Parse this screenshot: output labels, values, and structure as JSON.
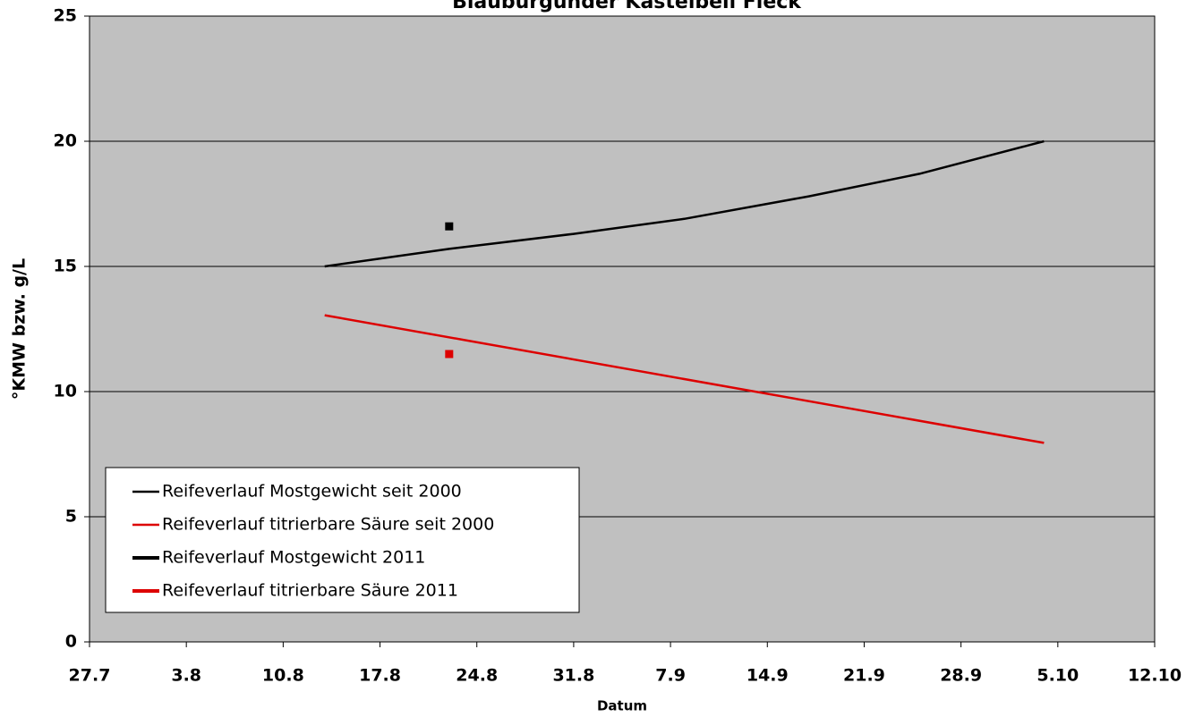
{
  "chart_data": {
    "type": "line",
    "title": "Blauburgunder Kastelbell Fleck",
    "xlabel": "Datum",
    "ylabel": "°KMW bzw. g/L",
    "xlim": [
      0,
      77
    ],
    "xticks": [
      {
        "value": 0,
        "label": "27.7"
      },
      {
        "value": 7,
        "label": "3.8"
      },
      {
        "value": 14,
        "label": "10.8"
      },
      {
        "value": 21,
        "label": "17.8"
      },
      {
        "value": 28,
        "label": "24.8"
      },
      {
        "value": 35,
        "label": "31.8"
      },
      {
        "value": 42,
        "label": "7.9"
      },
      {
        "value": 49,
        "label": "14.9"
      },
      {
        "value": 56,
        "label": "21.9"
      },
      {
        "value": 63,
        "label": "28.9"
      },
      {
        "value": 70,
        "label": "5.10"
      },
      {
        "value": 77,
        "label": "12.10"
      }
    ],
    "ylim": [
      0,
      25
    ],
    "yticks": [
      0,
      5,
      10,
      15,
      20,
      25
    ],
    "grid": true,
    "legend": "lower left",
    "series": [
      {
        "name": "Reifeverlauf Mostgewicht seit 2000",
        "color": "#000000",
        "style": "line",
        "x": [
          17,
          26,
          35,
          43,
          52,
          60,
          69
        ],
        "values": [
          15,
          15.7,
          16.3,
          16.9,
          17.8,
          18.7,
          20
        ]
      },
      {
        "name": "Reifeverlauf titrierbare Säure seit 2000",
        "color": "#dd0000",
        "style": "line",
        "x": [
          17,
          69
        ],
        "values": [
          13.05,
          7.95
        ]
      },
      {
        "name": "Reifeverlauf Mostgewicht 2011",
        "color": "#000000",
        "style": "point",
        "x": [
          26
        ],
        "values": [
          16.6
        ]
      },
      {
        "name": "Reifeverlauf titrierbare Säure 2011",
        "color": "#dd0000",
        "style": "point",
        "x": [
          26
        ],
        "values": [
          11.5
        ]
      }
    ]
  }
}
